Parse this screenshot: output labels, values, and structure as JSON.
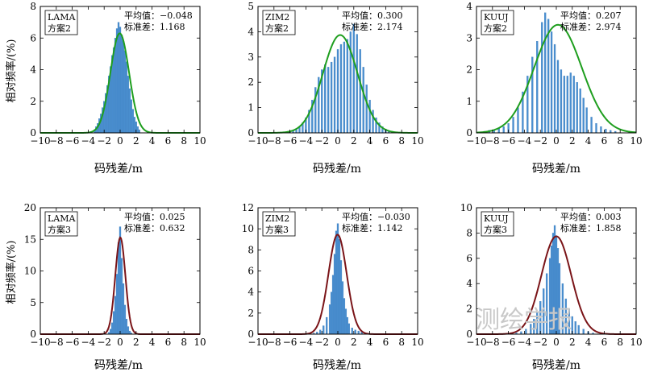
{
  "figure": {
    "ylabel": "相对频率/(%)",
    "xlabel": "码残差/m",
    "watermark": "测绘学报",
    "stat_mean_label": "平均值：",
    "stat_std_label": "标准差：",
    "bar_color": "#4a8fd0",
    "curve_colors": {
      "方案2": "#1e9e1e",
      "方案3": "#7a1418"
    }
  },
  "chart_data": [
    {
      "type": "bar",
      "station": "LAMA",
      "scheme": "方案2",
      "mean_label": "−0.048",
      "std_label": "1.168",
      "mean": -0.048,
      "std": 1.168,
      "xlim": [
        -10,
        10
      ],
      "ylim": [
        0,
        8
      ],
      "xticks": [
        "−10",
        "−8",
        "−6",
        "−4",
        "−2",
        "0",
        "2",
        "4",
        "6",
        "8",
        "10"
      ],
      "yticks": [
        "0",
        "2",
        "4",
        "6",
        "8"
      ],
      "bin_width": 0.2,
      "bins": [
        {
          "x": -3.2,
          "y": 0.2
        },
        {
          "x": -3.0,
          "y": 0.4
        },
        {
          "x": -2.8,
          "y": 0.6
        },
        {
          "x": -2.6,
          "y": 0.9
        },
        {
          "x": -2.4,
          "y": 1.2
        },
        {
          "x": -2.2,
          "y": 1.6
        },
        {
          "x": -2.0,
          "y": 2.0
        },
        {
          "x": -1.8,
          "y": 2.5
        },
        {
          "x": -1.6,
          "y": 3.0
        },
        {
          "x": -1.4,
          "y": 3.6
        },
        {
          "x": -1.2,
          "y": 4.2
        },
        {
          "x": -1.0,
          "y": 4.9
        },
        {
          "x": -0.8,
          "y": 5.4
        },
        {
          "x": -0.6,
          "y": 6.0
        },
        {
          "x": -0.4,
          "y": 6.6
        },
        {
          "x": -0.2,
          "y": 7.0
        },
        {
          "x": 0.0,
          "y": 6.7
        },
        {
          "x": 0.2,
          "y": 6.2
        },
        {
          "x": 0.4,
          "y": 5.8
        },
        {
          "x": 0.6,
          "y": 5.2
        },
        {
          "x": 0.8,
          "y": 4.5
        },
        {
          "x": 1.0,
          "y": 3.6
        },
        {
          "x": 1.2,
          "y": 2.8
        },
        {
          "x": 1.4,
          "y": 2.1
        },
        {
          "x": 1.6,
          "y": 1.5
        },
        {
          "x": 1.8,
          "y": 1.0
        },
        {
          "x": 2.0,
          "y": 0.7
        },
        {
          "x": 2.2,
          "y": 0.4
        },
        {
          "x": 2.4,
          "y": 0.2
        }
      ]
    },
    {
      "type": "bar",
      "station": "ZIM2",
      "scheme": "方案2",
      "mean_label": "0.300",
      "std_label": "2.174",
      "mean": 0.3,
      "std": 2.174,
      "xlim": [
        -10,
        10
      ],
      "ylim": [
        0,
        5
      ],
      "xticks": [
        "−10",
        "−8",
        "−6",
        "−4",
        "−2",
        "0",
        "2",
        "4",
        "6",
        "8",
        "10"
      ],
      "yticks": [
        "0",
        "1",
        "2",
        "3",
        "4",
        "5"
      ],
      "bin_width": 0.2,
      "bins": [
        {
          "x": -6.0,
          "y": 0.05
        },
        {
          "x": -5.6,
          "y": 0.1
        },
        {
          "x": -5.2,
          "y": 0.15
        },
        {
          "x": -4.8,
          "y": 0.25
        },
        {
          "x": -4.4,
          "y": 0.4
        },
        {
          "x": -4.0,
          "y": 0.6
        },
        {
          "x": -3.6,
          "y": 0.9
        },
        {
          "x": -3.2,
          "y": 1.3
        },
        {
          "x": -2.8,
          "y": 1.8
        },
        {
          "x": -2.4,
          "y": 2.2
        },
        {
          "x": -2.0,
          "y": 2.5
        },
        {
          "x": -1.6,
          "y": 2.7
        },
        {
          "x": -1.2,
          "y": 2.6
        },
        {
          "x": -0.8,
          "y": 2.8
        },
        {
          "x": -0.4,
          "y": 3.0
        },
        {
          "x": 0.0,
          "y": 3.3
        },
        {
          "x": 0.4,
          "y": 3.5
        },
        {
          "x": 0.8,
          "y": 3.6
        },
        {
          "x": 1.2,
          "y": 3.7
        },
        {
          "x": 1.6,
          "y": 4.0
        },
        {
          "x": 2.0,
          "y": 4.3
        },
        {
          "x": 2.4,
          "y": 3.9
        },
        {
          "x": 2.8,
          "y": 3.3
        },
        {
          "x": 3.2,
          "y": 2.6
        },
        {
          "x": 3.6,
          "y": 1.9
        },
        {
          "x": 4.0,
          "y": 1.3
        },
        {
          "x": 4.4,
          "y": 0.9
        },
        {
          "x": 4.8,
          "y": 0.6
        },
        {
          "x": 5.2,
          "y": 0.4
        },
        {
          "x": 5.6,
          "y": 0.25
        },
        {
          "x": 6.0,
          "y": 0.15
        },
        {
          "x": 6.4,
          "y": 0.08
        }
      ]
    },
    {
      "type": "bar",
      "station": "KUUJ",
      "scheme": "方案2",
      "mean_label": "0.207",
      "std_label": "2.974",
      "mean": 0.207,
      "std": 2.974,
      "xlim": [
        -10,
        10
      ],
      "ylim": [
        0,
        4
      ],
      "xticks": [
        "−10",
        "−8",
        "−6",
        "−4",
        "−2",
        "0",
        "2",
        "4",
        "6",
        "8",
        "10"
      ],
      "yticks": [
        "0",
        "1",
        "2",
        "3",
        "4"
      ],
      "bin_width": 0.2,
      "bins": [
        {
          "x": -9.0,
          "y": 0.05
        },
        {
          "x": -8.4,
          "y": 0.08
        },
        {
          "x": -7.8,
          "y": 0.1
        },
        {
          "x": -7.2,
          "y": 0.15
        },
        {
          "x": -6.6,
          "y": 0.2
        },
        {
          "x": -6.0,
          "y": 0.3
        },
        {
          "x": -5.4,
          "y": 0.5
        },
        {
          "x": -4.8,
          "y": 0.8
        },
        {
          "x": -4.2,
          "y": 1.3
        },
        {
          "x": -3.6,
          "y": 1.8
        },
        {
          "x": -3.0,
          "y": 2.4
        },
        {
          "x": -2.4,
          "y": 2.9
        },
        {
          "x": -1.8,
          "y": 3.5
        },
        {
          "x": -1.4,
          "y": 3.8
        },
        {
          "x": -1.0,
          "y": 3.6
        },
        {
          "x": -0.6,
          "y": 3.2
        },
        {
          "x": -0.2,
          "y": 2.8
        },
        {
          "x": 0.2,
          "y": 2.3
        },
        {
          "x": 0.6,
          "y": 2.0
        },
        {
          "x": 1.0,
          "y": 1.8
        },
        {
          "x": 1.4,
          "y": 1.8
        },
        {
          "x": 1.8,
          "y": 1.9
        },
        {
          "x": 2.2,
          "y": 1.8
        },
        {
          "x": 2.6,
          "y": 1.6
        },
        {
          "x": 3.0,
          "y": 1.4
        },
        {
          "x": 3.4,
          "y": 1.1
        },
        {
          "x": 3.8,
          "y": 0.8
        },
        {
          "x": 4.4,
          "y": 0.5
        },
        {
          "x": 5.0,
          "y": 0.3
        },
        {
          "x": 5.6,
          "y": 0.2
        },
        {
          "x": 6.2,
          "y": 0.12
        },
        {
          "x": 6.8,
          "y": 0.08
        },
        {
          "x": 7.4,
          "y": 0.05
        }
      ]
    },
    {
      "type": "bar",
      "station": "LAMA",
      "scheme": "方案3",
      "mean_label": "0.025",
      "std_label": "0.632",
      "mean": 0.025,
      "std": 0.632,
      "xlim": [
        -10,
        10
      ],
      "ylim": [
        0,
        20
      ],
      "xticks": [
        "−10",
        "−8",
        "−6",
        "−4",
        "−2",
        "0",
        "2",
        "4",
        "6",
        "8",
        "10"
      ],
      "yticks": [
        "0",
        "5",
        "10",
        "15",
        "20"
      ],
      "bin_width": 0.2,
      "bins": [
        {
          "x": -1.4,
          "y": 0.3
        },
        {
          "x": -1.2,
          "y": 0.8
        },
        {
          "x": -1.0,
          "y": 1.8
        },
        {
          "x": -0.8,
          "y": 3.6
        },
        {
          "x": -0.6,
          "y": 6.0
        },
        {
          "x": -0.4,
          "y": 9.5
        },
        {
          "x": -0.2,
          "y": 14.5
        },
        {
          "x": 0.0,
          "y": 17.0
        },
        {
          "x": 0.2,
          "y": 12.0
        },
        {
          "x": 0.4,
          "y": 8.0
        },
        {
          "x": 0.6,
          "y": 4.6
        },
        {
          "x": 0.8,
          "y": 2.4
        },
        {
          "x": 1.0,
          "y": 1.2
        },
        {
          "x": 1.2,
          "y": 0.5
        },
        {
          "x": 1.4,
          "y": 0.2
        }
      ]
    },
    {
      "type": "bar",
      "station": "ZIM2",
      "scheme": "方案3",
      "mean_label": "−0.030",
      "std_label": "1.142",
      "mean": -0.03,
      "std": 1.142,
      "xlim": [
        -10,
        10
      ],
      "ylim": [
        0,
        12
      ],
      "xticks": [
        "−10",
        "−8",
        "−6",
        "−4",
        "−2",
        "0",
        "2",
        "4",
        "6",
        "8",
        "10"
      ],
      "yticks": [
        "0",
        "2",
        "4",
        "6",
        "8",
        "10",
        "12"
      ],
      "bin_width": 0.2,
      "bins": [
        {
          "x": -3.0,
          "y": 0.1
        },
        {
          "x": -2.6,
          "y": 0.2
        },
        {
          "x": -2.2,
          "y": 0.4
        },
        {
          "x": -1.8,
          "y": 0.8
        },
        {
          "x": -1.4,
          "y": 1.6
        },
        {
          "x": -1.0,
          "y": 2.8
        },
        {
          "x": -0.8,
          "y": 4.0
        },
        {
          "x": -0.6,
          "y": 5.6
        },
        {
          "x": -0.4,
          "y": 7.6
        },
        {
          "x": -0.2,
          "y": 9.8
        },
        {
          "x": 0.0,
          "y": 10.5
        },
        {
          "x": 0.2,
          "y": 9.0
        },
        {
          "x": 0.4,
          "y": 7.0
        },
        {
          "x": 0.6,
          "y": 5.0
        },
        {
          "x": 0.8,
          "y": 3.4
        },
        {
          "x": 1.0,
          "y": 2.4
        },
        {
          "x": 1.2,
          "y": 1.6
        },
        {
          "x": 1.4,
          "y": 1.0
        },
        {
          "x": 1.8,
          "y": 0.6
        },
        {
          "x": 2.2,
          "y": 0.4
        },
        {
          "x": 2.6,
          "y": 0.3
        },
        {
          "x": 3.0,
          "y": 0.2
        },
        {
          "x": 3.4,
          "y": 0.1
        }
      ]
    },
    {
      "type": "bar",
      "station": "KUUJ",
      "scheme": "方案3",
      "mean_label": "0.003",
      "std_label": "1.858",
      "mean": 0.003,
      "std": 1.858,
      "xlim": [
        -10,
        10
      ],
      "ylim": [
        0,
        10
      ],
      "xticks": [
        "−10",
        "−8",
        "−6",
        "−4",
        "−2",
        "0",
        "2",
        "4",
        "6",
        "8",
        "10"
      ],
      "yticks": [
        "0",
        "2",
        "4",
        "6",
        "8",
        "10"
      ],
      "bin_width": 0.2,
      "bins": [
        {
          "x": -5.0,
          "y": 0.1
        },
        {
          "x": -4.4,
          "y": 0.2
        },
        {
          "x": -3.8,
          "y": 0.4
        },
        {
          "x": -3.2,
          "y": 0.8
        },
        {
          "x": -2.8,
          "y": 1.2
        },
        {
          "x": -2.4,
          "y": 1.8
        },
        {
          "x": -2.0,
          "y": 2.6
        },
        {
          "x": -1.6,
          "y": 3.6
        },
        {
          "x": -1.2,
          "y": 4.8
        },
        {
          "x": -0.8,
          "y": 6.0
        },
        {
          "x": -0.6,
          "y": 7.0
        },
        {
          "x": -0.4,
          "y": 8.0
        },
        {
          "x": -0.2,
          "y": 8.6
        },
        {
          "x": 0.0,
          "y": 7.8
        },
        {
          "x": 0.2,
          "y": 6.8
        },
        {
          "x": 0.4,
          "y": 5.6
        },
        {
          "x": 0.8,
          "y": 4.0
        },
        {
          "x": 1.2,
          "y": 2.8
        },
        {
          "x": 1.6,
          "y": 2.0
        },
        {
          "x": 2.0,
          "y": 1.4
        },
        {
          "x": 2.4,
          "y": 1.0
        },
        {
          "x": 2.8,
          "y": 0.7
        },
        {
          "x": 3.4,
          "y": 0.4
        },
        {
          "x": 4.0,
          "y": 0.2
        },
        {
          "x": 4.6,
          "y": 0.1
        }
      ]
    }
  ]
}
